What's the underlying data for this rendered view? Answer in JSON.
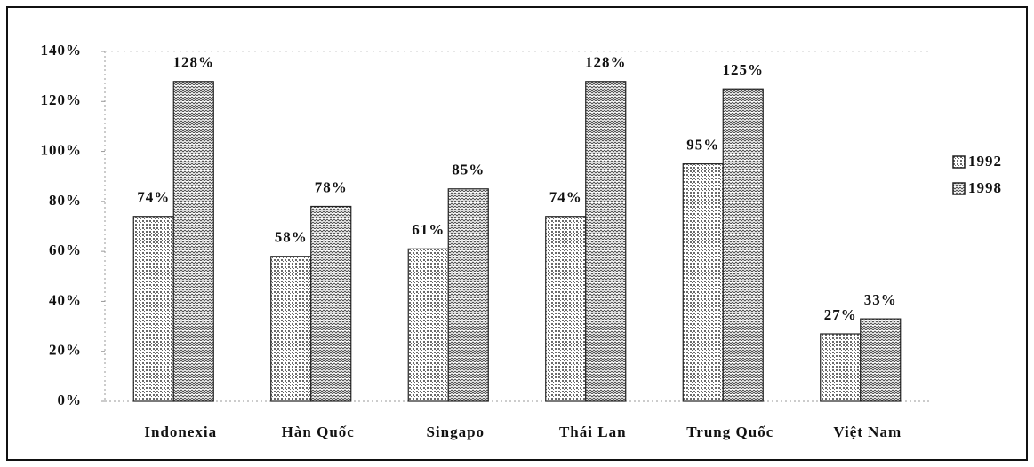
{
  "chart_data": {
    "type": "bar",
    "categories": [
      "Indonexia",
      "Hàn Quốc",
      "Singapo",
      "Thái Lan",
      "Trung Quốc",
      "Việt Nam"
    ],
    "series": [
      {
        "name": "1992",
        "color": "#6a6a6a",
        "values": [
          74,
          58,
          61,
          74,
          95,
          27
        ],
        "value_labels": [
          "74%",
          "58%",
          "61%",
          "74%",
          "95%",
          "27%"
        ]
      },
      {
        "name": "1998",
        "color": "#444444",
        "values": [
          128,
          78,
          85,
          128,
          125,
          33
        ],
        "value_labels": [
          "128%",
          "78%",
          "85%",
          "128%",
          "125%",
          "33%"
        ]
      }
    ],
    "ylim": [
      0,
      140
    ],
    "yticks": [
      {
        "value": 0,
        "label": "0%"
      },
      {
        "value": 20,
        "label": "20%"
      },
      {
        "value": 40,
        "label": "40%"
      },
      {
        "value": 60,
        "label": "60%"
      },
      {
        "value": 80,
        "label": "80%"
      },
      {
        "value": 100,
        "label": "100%"
      },
      {
        "value": 120,
        "label": "120%"
      },
      {
        "value": 140,
        "label": "140%"
      }
    ],
    "grid": false,
    "legend": "right"
  }
}
